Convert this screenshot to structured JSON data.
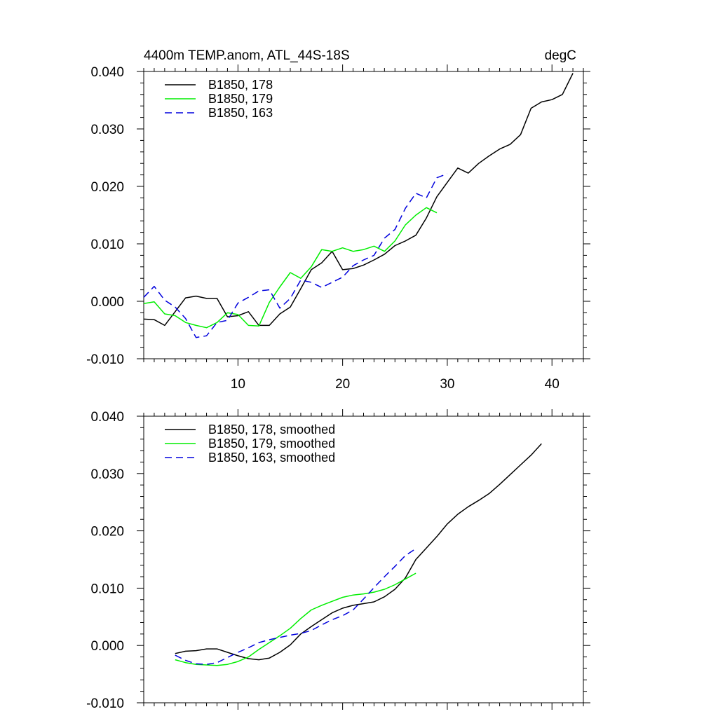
{
  "chart_data": [
    {
      "type": "line",
      "title": "4400m TEMP.anom, ATL_44S-18S",
      "units": "degC",
      "xlabel": "",
      "ylabel": "",
      "xlim": [
        1,
        43
      ],
      "ylim": [
        -0.01,
        0.04
      ],
      "xticks": [
        10,
        20,
        30,
        40
      ],
      "yticks": [
        -0.01,
        0.0,
        0.01,
        0.02,
        0.03,
        0.04
      ],
      "ytick_labels": [
        "-0.010",
        "0.000",
        "0.010",
        "0.020",
        "0.030",
        "0.040"
      ],
      "legend": {
        "placement": "top-left"
      },
      "series": [
        {
          "name": "B1850, 178",
          "color": "#000000",
          "dash": "solid",
          "x": [
            1,
            2,
            3,
            4,
            5,
            6,
            7,
            8,
            9,
            10,
            11,
            12,
            13,
            14,
            15,
            16,
            17,
            18,
            19,
            20,
            21,
            22,
            23,
            24,
            25,
            26,
            27,
            28,
            29,
            30,
            31,
            32,
            33,
            34,
            35,
            36,
            37,
            38,
            39,
            40,
            41,
            42
          ],
          "y": [
            -0.0031,
            -0.0032,
            -0.0042,
            -0.0018,
            0.0006,
            0.0009,
            0.0005,
            0.0005,
            -0.0027,
            -0.0025,
            -0.0018,
            -0.0042,
            -0.0042,
            -0.0022,
            -0.001,
            0.0022,
            0.0055,
            0.0067,
            0.0087,
            0.0055,
            0.0057,
            0.0063,
            0.0072,
            0.0082,
            0.0097,
            0.0105,
            0.0115,
            0.0145,
            0.0182,
            0.0207,
            0.0232,
            0.0223,
            0.024,
            0.0253,
            0.0265,
            0.0273,
            0.029,
            0.0336,
            0.0347,
            0.0351,
            0.036,
            0.0397
          ]
        },
        {
          "name": "B1850, 179",
          "color": "#00ee00",
          "dash": "solid",
          "x": [
            1,
            2,
            3,
            4,
            5,
            6,
            7,
            8,
            9,
            10,
            11,
            12,
            13,
            14,
            15,
            16,
            17,
            18,
            19,
            20,
            21,
            22,
            23,
            24,
            25,
            26,
            27,
            28,
            29,
            30
          ],
          "y": [
            -0.0004,
            -0.0001,
            -0.0022,
            -0.0025,
            -0.0037,
            -0.0042,
            -0.0046,
            -0.0037,
            -0.002,
            -0.0023,
            -0.0042,
            -0.0043,
            -0.0002,
            0.0025,
            0.005,
            0.004,
            0.006,
            0.009,
            0.0087,
            0.0093,
            0.0087,
            0.009,
            0.0096,
            0.0087,
            0.0105,
            0.0133,
            0.015,
            0.0163,
            0.0154,
            null
          ]
        },
        {
          "name": "B1850, 163",
          "color": "#0000dd",
          "dash": "dashed",
          "x": [
            1,
            2,
            3,
            4,
            5,
            6,
            7,
            8,
            9,
            10,
            11,
            12,
            13,
            14,
            15,
            16,
            17,
            18,
            19,
            20,
            21,
            22,
            23,
            24,
            25,
            26,
            27,
            28,
            29,
            30
          ],
          "y": [
            0.0007,
            0.0026,
            0.0002,
            -0.001,
            -0.003,
            -0.0063,
            -0.006,
            -0.0037,
            -0.0033,
            -0.0003,
            0.0007,
            0.0018,
            0.002,
            -0.0012,
            0.0005,
            0.0037,
            0.0033,
            0.0024,
            0.0033,
            0.0042,
            0.0062,
            0.0072,
            0.008,
            0.011,
            0.0125,
            0.0162,
            0.0188,
            0.018,
            0.0215,
            0.0222
          ]
        }
      ]
    },
    {
      "type": "line",
      "title": "",
      "xlabel": "",
      "ylabel": "",
      "xlim": [
        1,
        43
      ],
      "ylim": [
        -0.01,
        0.04
      ],
      "xticks": [
        10,
        20,
        30,
        40
      ],
      "yticks": [
        -0.01,
        0.0,
        0.01,
        0.02,
        0.03,
        0.04
      ],
      "ytick_labels": [
        "-0.010",
        "0.000",
        "0.010",
        "0.020",
        "0.030",
        "0.040"
      ],
      "legend": {
        "placement": "top-left"
      },
      "series": [
        {
          "name": "B1850, 178, smoothed",
          "color": "#000000",
          "dash": "solid",
          "x": [
            4,
            5,
            6,
            7,
            8,
            9,
            10,
            11,
            12,
            13,
            14,
            15,
            16,
            17,
            18,
            19,
            20,
            21,
            22,
            23,
            24,
            25,
            26,
            27,
            28,
            29,
            30,
            31,
            32,
            33,
            34,
            35,
            36,
            37,
            38,
            39
          ],
          "y": [
            -0.0014,
            -0.001,
            -0.0009,
            -0.0006,
            -0.0006,
            -0.0012,
            -0.0018,
            -0.0023,
            -0.0025,
            -0.0022,
            -0.0012,
            0.0001,
            0.002,
            0.0033,
            0.0045,
            0.0057,
            0.0065,
            0.007,
            0.0073,
            0.0076,
            0.0085,
            0.0098,
            0.0118,
            0.015,
            0.017,
            0.019,
            0.0212,
            0.0229,
            0.0242,
            0.0253,
            0.0265,
            0.0281,
            0.0298,
            0.0315,
            0.0332,
            0.0352
          ]
        },
        {
          "name": "B1850, 179, smoothed",
          "color": "#00ee00",
          "dash": "solid",
          "x": [
            4,
            5,
            6,
            7,
            8,
            9,
            10,
            11,
            12,
            13,
            14,
            15,
            16,
            17,
            18,
            19,
            20,
            21,
            22,
            23,
            24,
            25,
            26,
            27
          ],
          "y": [
            -0.0025,
            -0.003,
            -0.0033,
            -0.0034,
            -0.0035,
            -0.0033,
            -0.0028,
            -0.002,
            -0.0007,
            0.0005,
            0.0017,
            0.003,
            0.0047,
            0.0062,
            0.007,
            0.0077,
            0.0084,
            0.0088,
            0.009,
            0.0093,
            0.0098,
            0.0106,
            0.0116,
            0.0126
          ]
        },
        {
          "name": "B1850, 163, smoothed",
          "color": "#0000dd",
          "dash": "dashed",
          "x": [
            4,
            5,
            6,
            7,
            8,
            9,
            10,
            11,
            12,
            13,
            14,
            15,
            16,
            17,
            18,
            19,
            20,
            21,
            22,
            23,
            24,
            25,
            26,
            27
          ],
          "y": [
            -0.0017,
            -0.0026,
            -0.0032,
            -0.0033,
            -0.003,
            -0.0021,
            -0.0012,
            -0.0004,
            0.0005,
            0.001,
            0.0014,
            0.0018,
            0.0021,
            0.0026,
            0.0036,
            0.0045,
            0.0052,
            0.0062,
            0.0081,
            0.0101,
            0.012,
            0.0138,
            0.0157,
            0.0169
          ]
        }
      ]
    }
  ]
}
